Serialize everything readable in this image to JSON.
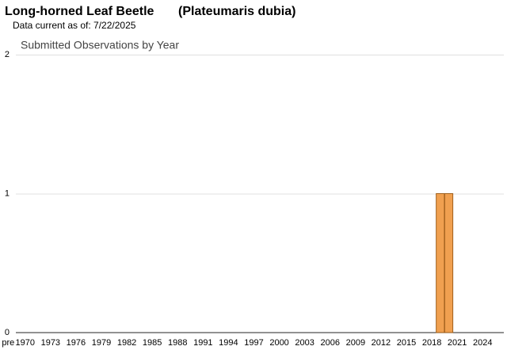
{
  "chart_data": {
    "type": "bar",
    "title": "Long-horned Leaf Beetle",
    "scientific_name": "(Plateumaris dubia)",
    "subtitle": "Data current as of: 7/22/2025",
    "chart_title": "Submitted Observations by Year",
    "categories": [
      "pre",
      null,
      "1970",
      null,
      null,
      "1973",
      null,
      null,
      "1976",
      null,
      null,
      "1979",
      null,
      null,
      "1982",
      null,
      null,
      "1985",
      null,
      null,
      "1988",
      null,
      null,
      "1991",
      null,
      null,
      "1994",
      null,
      null,
      "1997",
      null,
      null,
      "2000",
      null,
      null,
      "2003",
      null,
      null,
      "2006",
      null,
      null,
      "2009",
      null,
      null,
      "2012",
      null,
      null,
      "2015",
      null,
      null,
      "2018",
      null,
      null,
      "2021",
      null,
      null,
      "2024",
      null,
      null
    ],
    "values": [
      0,
      0,
      0,
      0,
      0,
      0,
      0,
      0,
      0,
      0,
      0,
      0,
      0,
      0,
      0,
      0,
      0,
      0,
      0,
      0,
      0,
      0,
      0,
      0,
      0,
      0,
      0,
      0,
      0,
      0,
      0,
      0,
      0,
      0,
      0,
      0,
      0,
      0,
      0,
      0,
      0,
      0,
      0,
      0,
      0,
      0,
      0,
      0,
      0,
      0,
      0,
      1,
      1,
      0,
      0,
      0,
      0,
      0,
      0
    ],
    "color": "#f0a050",
    "ylim": [
      0,
      2
    ],
    "yticks": [
      0,
      1,
      2
    ],
    "grid": true
  }
}
